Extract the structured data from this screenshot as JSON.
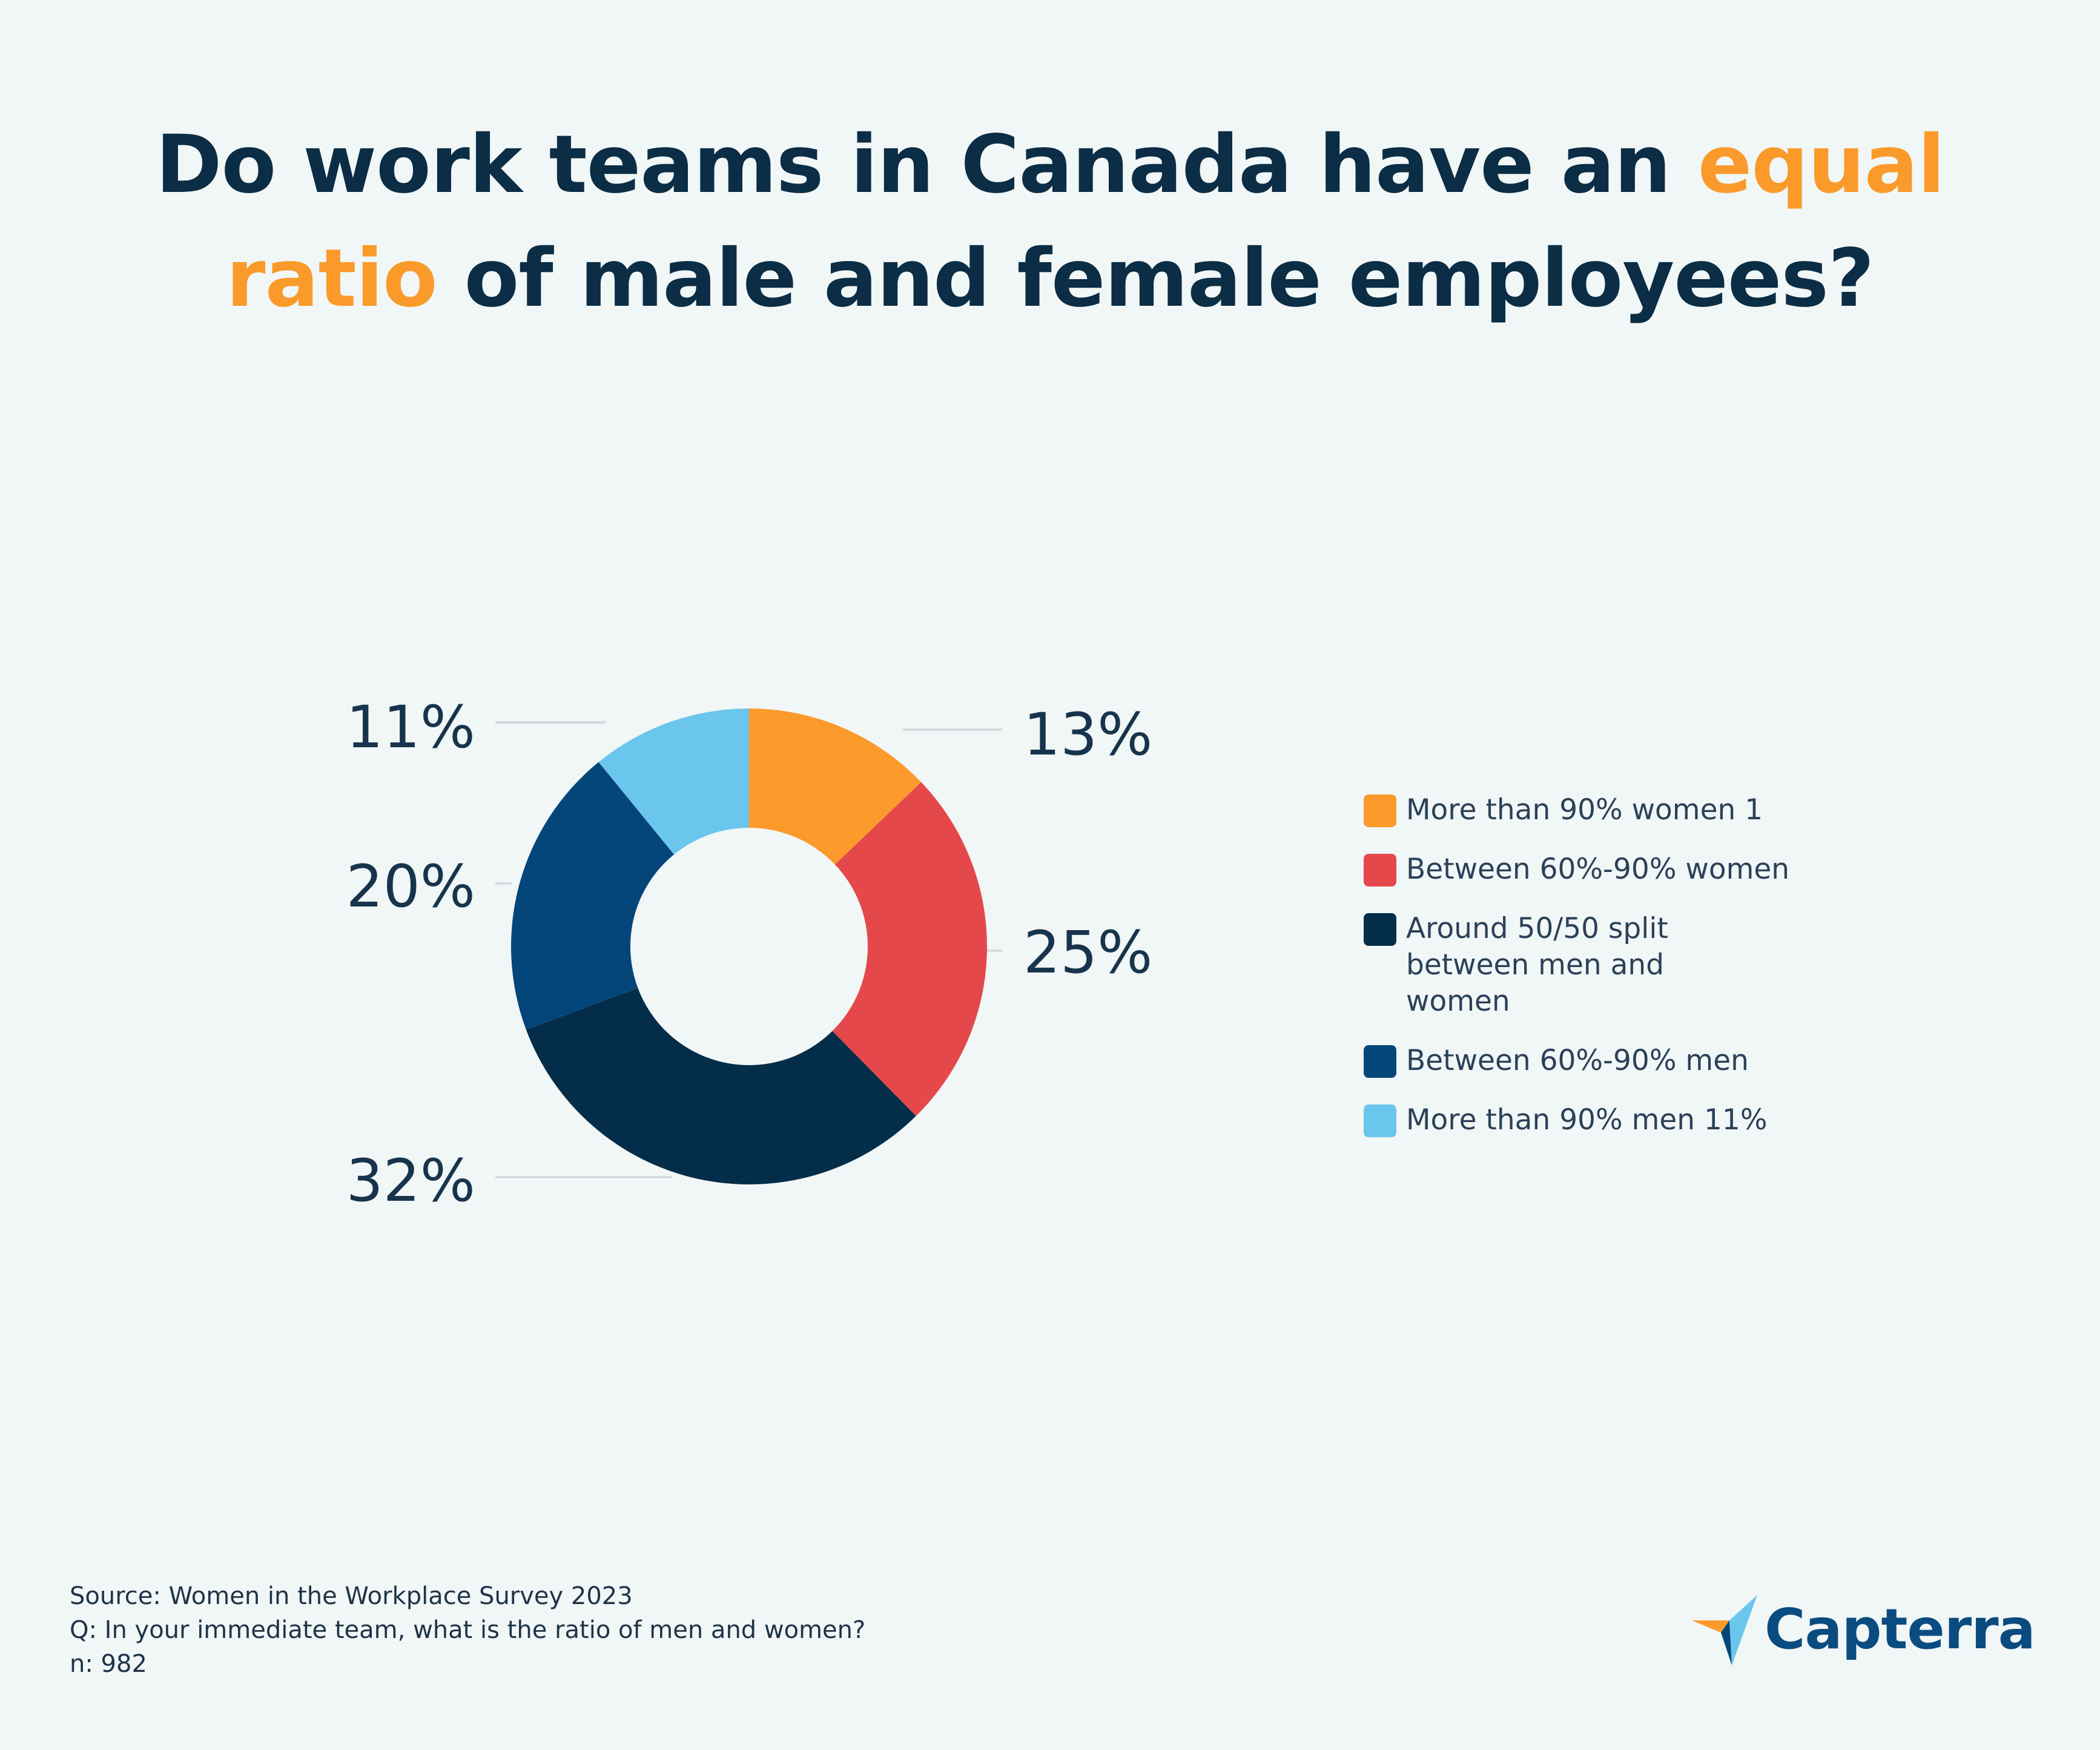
{
  "title": {
    "part1": "Do work teams in Canada have an ",
    "highlight1": "equal",
    "highlight2": "ratio",
    "part2": " of male and female employees?",
    "highlight_color": "#fa9a2a"
  },
  "chart_data": {
    "type": "pie",
    "donut": true,
    "slices": [
      {
        "label": "More than 90% women",
        "legend_text": "More than 90% women 1",
        "value": 13,
        "display": "13%",
        "color": "#fc9a2c"
      },
      {
        "label": "Between 60%-90% women",
        "legend_text": "Between 60%-90% women",
        "value": 25,
        "display": "25%",
        "color": "#e5484a"
      },
      {
        "label": "Around 50/50 split between men and women",
        "legend_text": "Around 50/50 split between men and women",
        "value": 32,
        "display": "32%",
        "color": "#032d48"
      },
      {
        "label": "Between 60%-90% men",
        "legend_text": "Between 60%-90% men",
        "value": 20,
        "display": "20%",
        "color": "#05467a"
      },
      {
        "label": "More than 90% men",
        "legend_text": "More than 90% men 11%",
        "value": 11,
        "display": "11%",
        "color": "#6bc6ee"
      }
    ],
    "legend_position": "right"
  },
  "footer": {
    "source": "Source: Women in the Workplace Survey 2023",
    "question": "Q:  In your immediate team, what is the ratio of men and women?",
    "n": "n: 982"
  },
  "logo": {
    "text": "Capterra",
    "icon": "capterra-arrow-icon"
  }
}
